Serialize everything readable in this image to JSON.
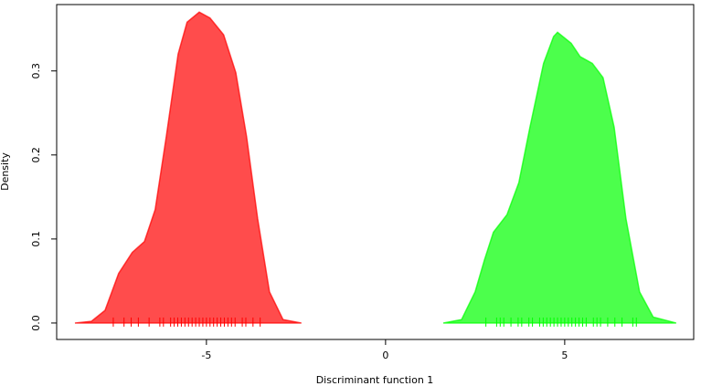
{
  "chart_data": {
    "type": "area",
    "x_label": "Discriminant function 1",
    "y_label": "Density",
    "xlim": [
      -9.18,
      8.6
    ],
    "ylim": [
      -0.0196,
      0.379
    ],
    "xticks": [
      -5,
      0,
      5
    ],
    "yticks": [
      {
        "value": 0,
        "label": "0.0"
      },
      0.1,
      0.2,
      0.3
    ],
    "series": [
      {
        "color": "#ff0000",
        "opacity": 0.7,
        "x": [
          -8.67,
          -8.21,
          -7.83,
          -7.45,
          -7.07,
          -6.73,
          -6.43,
          -6.12,
          -5.79,
          -5.54,
          -5.2,
          -4.9,
          -4.52,
          -4.18,
          -3.88,
          -3.57,
          -3.24,
          -2.86,
          -2.35
        ],
        "values": [
          0,
          0.002,
          0.015,
          0.059,
          0.084,
          0.097,
          0.135,
          0.222,
          0.32,
          0.358,
          0.37,
          0.363,
          0.343,
          0.298,
          0.222,
          0.124,
          0.037,
          0.004,
          0
        ],
        "rug": [
          -7.6,
          -7.3,
          -7.1,
          -6.9,
          -6.6,
          -6.3,
          -6.2,
          -6.0,
          -5.9,
          -5.8,
          -5.7,
          -5.6,
          -5.5,
          -5.4,
          -5.3,
          -5.2,
          -5.1,
          -5.0,
          -4.9,
          -4.8,
          -4.7,
          -4.6,
          -4.5,
          -4.4,
          -4.3,
          -4.2,
          -4.0,
          -3.9,
          -3.7,
          -3.5
        ]
      },
      {
        "color": "#00ff00",
        "opacity": 0.7,
        "x": [
          1.61,
          2.12,
          2.5,
          2.76,
          3.01,
          3.39,
          3.72,
          4.03,
          4.41,
          4.69,
          4.8,
          5.18,
          5.43,
          5.77,
          6.07,
          6.38,
          6.71,
          7.09,
          7.47,
          8.11
        ],
        "values": [
          0,
          0.004,
          0.037,
          0.075,
          0.108,
          0.129,
          0.167,
          0.233,
          0.309,
          0.341,
          0.346,
          0.333,
          0.317,
          0.309,
          0.292,
          0.233,
          0.124,
          0.037,
          0.007,
          0
        ],
        "rug": [
          2.8,
          3.1,
          3.2,
          3.3,
          3.5,
          3.7,
          3.8,
          4.0,
          4.1,
          4.3,
          4.4,
          4.5,
          4.6,
          4.7,
          4.8,
          4.9,
          5.0,
          5.1,
          5.2,
          5.3,
          5.4,
          5.5,
          5.6,
          5.8,
          5.9,
          6.0,
          6.2,
          6.4,
          6.6,
          6.9,
          7.0
        ]
      }
    ]
  }
}
